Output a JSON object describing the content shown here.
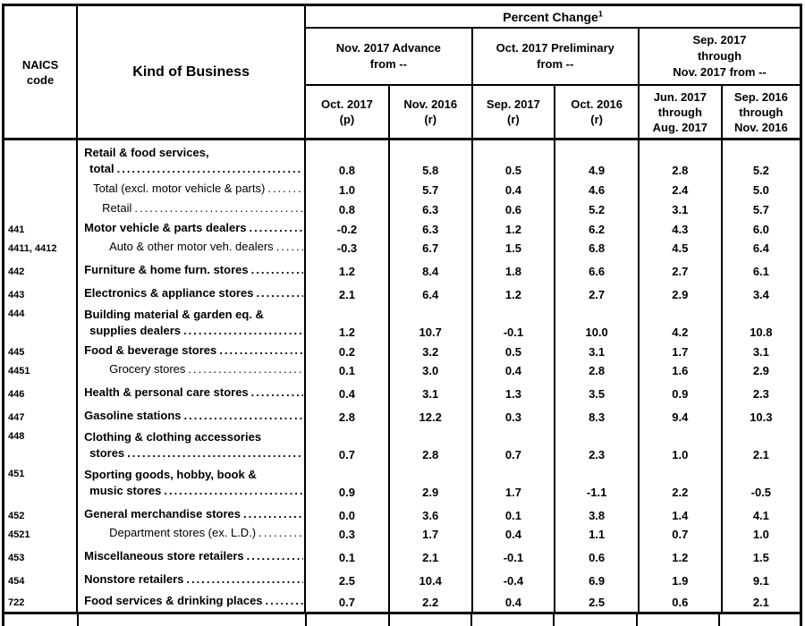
{
  "header": {
    "naics": [
      "NAICS",
      "code"
    ],
    "kind_of_business": "Kind of Business",
    "percent_change": "Percent Change",
    "footnote_marker": "1",
    "groups": [
      [
        "Nov. 2017 Advance",
        "from --"
      ],
      [
        "Oct. 2017 Preliminary",
        "from --"
      ],
      [
        "Sep. 2017",
        "through",
        "Nov. 2017 from --"
      ]
    ],
    "subcolumns": [
      [
        "Oct. 2017",
        "(p)"
      ],
      [
        "Nov. 2016",
        "(r)"
      ],
      [
        "Sep. 2017",
        "(r)"
      ],
      [
        "Oct. 2016",
        "(r)"
      ],
      [
        "Jun. 2017",
        "through",
        "Aug. 2017"
      ],
      [
        "Sep. 2016",
        "through",
        "Nov. 2016"
      ]
    ]
  },
  "rows": [
    {
      "code": "",
      "lines": [
        "Retail & food services,",
        "total"
      ],
      "level": 0,
      "bold": true,
      "type": "tall2",
      "values": [
        "0.8",
        "5.8",
        "0.5",
        "4.9",
        "2.8",
        "5.2"
      ]
    },
    {
      "code": "",
      "lines": [
        "Total (excl. motor vehicle & parts)"
      ],
      "level": 1,
      "bold": false,
      "type": "sm",
      "values": [
        "1.0",
        "5.7",
        "0.4",
        "4.6",
        "2.4",
        "5.0"
      ]
    },
    {
      "code": "",
      "lines": [
        "Retail"
      ],
      "level": 2,
      "bold": false,
      "type": "sm",
      "values": [
        "0.8",
        "6.3",
        "0.6",
        "5.2",
        "3.1",
        "5.7"
      ]
    },
    {
      "code": "441",
      "lines": [
        "Motor vehicle & parts dealers"
      ],
      "level": 0,
      "bold": true,
      "type": "sm",
      "values": [
        "-0.2",
        "6.3",
        "1.2",
        "6.2",
        "4.3",
        "6.0"
      ]
    },
    {
      "code": "4411, 4412",
      "lines": [
        "Auto & other motor veh. dealers"
      ],
      "level": 3,
      "bold": false,
      "type": "tight",
      "values": [
        "-0.3",
        "6.7",
        "1.5",
        "6.8",
        "4.5",
        "6.4"
      ]
    },
    {
      "code": "442",
      "lines": [
        "Furniture & home furn. stores"
      ],
      "level": 0,
      "bold": true,
      "type": "std",
      "values": [
        "1.2",
        "8.4",
        "1.8",
        "6.6",
        "2.7",
        "6.1"
      ]
    },
    {
      "code": "443",
      "lines": [
        "Electronics & appliance stores"
      ],
      "level": 0,
      "bold": true,
      "type": "std",
      "values": [
        "2.1",
        "6.4",
        "1.2",
        "2.7",
        "2.9",
        "3.4"
      ]
    },
    {
      "code": "444",
      "lines": [
        "Building material & garden eq. &",
        "supplies dealers"
      ],
      "level": 0,
      "bold": true,
      "type": "two",
      "values": [
        "1.2",
        "10.7",
        "-0.1",
        "10.0",
        "4.2",
        "10.8"
      ]
    },
    {
      "code": "445",
      "lines": [
        "Food & beverage stores"
      ],
      "level": 0,
      "bold": true,
      "type": "sm",
      "values": [
        "0.2",
        "3.2",
        "0.5",
        "3.1",
        "1.7",
        "3.1"
      ]
    },
    {
      "code": "4451",
      "lines": [
        "Grocery stores"
      ],
      "level": 3,
      "bold": false,
      "type": "tight",
      "values": [
        "0.1",
        "3.0",
        "0.4",
        "2.8",
        "1.6",
        "2.9"
      ]
    },
    {
      "code": "446",
      "lines": [
        "Health & personal care stores"
      ],
      "level": 0,
      "bold": true,
      "type": "std",
      "values": [
        "0.4",
        "3.1",
        "1.3",
        "3.5",
        "0.9",
        "2.3"
      ]
    },
    {
      "code": "447",
      "lines": [
        "Gasoline stations"
      ],
      "level": 0,
      "bold": true,
      "type": "std",
      "values": [
        "2.8",
        "12.2",
        "0.3",
        "8.3",
        "9.4",
        "10.3"
      ]
    },
    {
      "code": "448",
      "lines": [
        "Clothing & clothing accessories",
        "stores"
      ],
      "level": 0,
      "bold": true,
      "type": "two",
      "values": [
        "0.7",
        "2.8",
        "0.7",
        "2.3",
        "1.0",
        "2.1"
      ]
    },
    {
      "code": "451",
      "lines": [
        "Sporting goods, hobby, book &",
        "music stores"
      ],
      "level": 0,
      "bold": true,
      "type": "two",
      "values": [
        "0.9",
        "2.9",
        "1.7",
        "-1.1",
        "2.2",
        "-0.5"
      ]
    },
    {
      "code": "452",
      "lines": [
        "General merchandise stores"
      ],
      "level": 0,
      "bold": true,
      "type": "std",
      "values": [
        "0.0",
        "3.6",
        "0.1",
        "3.8",
        "1.4",
        "4.1"
      ]
    },
    {
      "code": "4521",
      "lines": [
        "Department stores (ex. L.D.)"
      ],
      "level": 3,
      "bold": false,
      "type": "tight",
      "values": [
        "0.3",
        "1.7",
        "0.4",
        "1.1",
        "0.7",
        "1.0"
      ]
    },
    {
      "code": "453",
      "lines": [
        "Miscellaneous store retailers"
      ],
      "level": 0,
      "bold": true,
      "type": "std",
      "values": [
        "0.1",
        "2.1",
        "-0.1",
        "0.6",
        "1.2",
        "1.5"
      ]
    },
    {
      "code": "454",
      "lines": [
        "Nonstore retailers"
      ],
      "level": 0,
      "bold": true,
      "type": "std",
      "values": [
        "2.5",
        "10.4",
        "-0.4",
        "6.9",
        "1.9",
        "9.1"
      ]
    },
    {
      "code": "722",
      "lines": [
        "Food services & drinking places"
      ],
      "level": 0,
      "bold": true,
      "type": "std",
      "values": [
        "0.7",
        "2.2",
        "0.4",
        "2.5",
        "0.6",
        "2.1"
      ]
    }
  ]
}
